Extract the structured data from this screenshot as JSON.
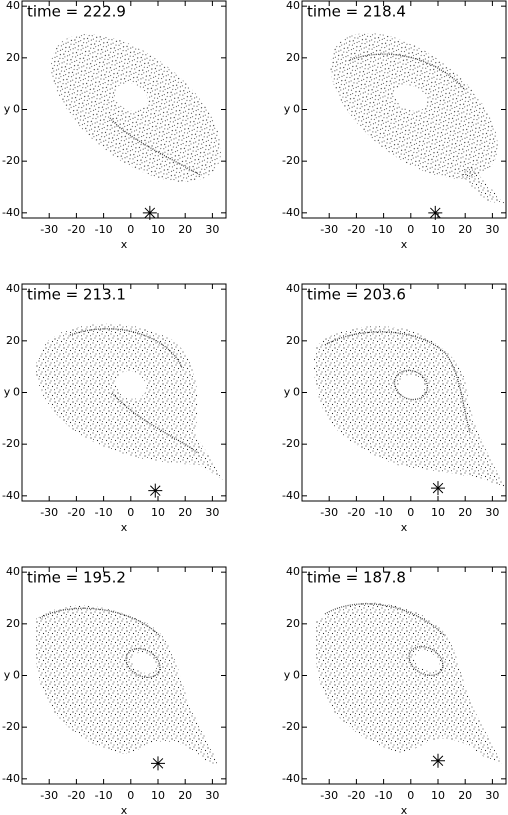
{
  "chart_data": [
    {
      "type": "scatter",
      "title": "time = 222.9",
      "xlabel": "x",
      "ylabel": "y",
      "xlim": [
        -40,
        35
      ],
      "ylim": [
        -42,
        42
      ],
      "xticks": [
        -30,
        -20,
        -10,
        0,
        10,
        20,
        30
      ],
      "yticks": [
        -40,
        -20,
        0,
        20,
        40
      ],
      "series": [
        {
          "color": "#000000",
          "x": [
            7
          ],
          "y": [
            -40
          ]
        }
      ]
    },
    {
      "type": "scatter",
      "title": "time = 218.4",
      "xlabel": "x",
      "ylabel": "y",
      "xlim": [
        -40,
        35
      ],
      "ylim": [
        -42,
        42
      ],
      "xticks": [
        -30,
        -20,
        -10,
        0,
        10,
        20,
        30
      ],
      "yticks": [
        -40,
        -20,
        0,
        20,
        40
      ],
      "series": [
        {
          "color": "#000000",
          "x": [
            9
          ],
          "y": [
            -40
          ]
        }
      ]
    },
    {
      "type": "scatter",
      "title": "time = 213.1",
      "xlabel": "x",
      "ylabel": "y",
      "xlim": [
        -40,
        35
      ],
      "ylim": [
        -42,
        42
      ],
      "xticks": [
        -30,
        -20,
        -10,
        0,
        10,
        20,
        30
      ],
      "yticks": [
        -40,
        -20,
        0,
        20,
        40
      ],
      "series": [
        {
          "color": "#000000",
          "x": [
            9
          ],
          "y": [
            -38
          ]
        }
      ]
    },
    {
      "type": "scatter",
      "title": "time = 203.6",
      "xlabel": "x",
      "ylabel": "y",
      "xlim": [
        -40,
        35
      ],
      "ylim": [
        -42,
        42
      ],
      "xticks": [
        -30,
        -20,
        -10,
        0,
        10,
        20,
        30
      ],
      "yticks": [
        -40,
        -20,
        0,
        20,
        40
      ],
      "series": [
        {
          "color": "#000000",
          "x": [
            10
          ],
          "y": [
            -37
          ]
        }
      ]
    },
    {
      "type": "scatter",
      "title": "time = 195.2",
      "xlabel": "x",
      "ylabel": "y",
      "xlim": [
        -40,
        35
      ],
      "ylim": [
        -42,
        42
      ],
      "xticks": [
        -30,
        -20,
        -10,
        0,
        10,
        20,
        30
      ],
      "yticks": [
        -40,
        -20,
        0,
        20,
        40
      ],
      "series": [
        {
          "color": "#000000",
          "x": [
            10
          ],
          "y": [
            -34
          ]
        }
      ]
    },
    {
      "type": "scatter",
      "title": "time = 187.8",
      "xlabel": "x",
      "ylabel": "y",
      "xlim": [
        -40,
        35
      ],
      "ylim": [
        -42,
        42
      ],
      "xticks": [
        -30,
        -20,
        -10,
        0,
        10,
        20,
        30
      ],
      "yticks": [
        -40,
        -20,
        0,
        20,
        40
      ],
      "series": [
        {
          "color": "#000000",
          "x": [
            10
          ],
          "y": [
            -33
          ]
        }
      ]
    }
  ]
}
